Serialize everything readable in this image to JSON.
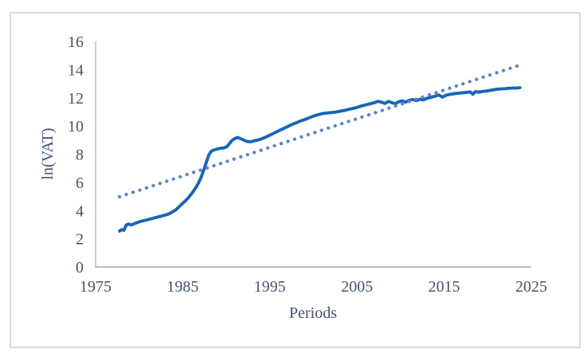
{
  "window": {
    "background_color": "#ffffff",
    "frame_border_color": "#d9d9d9"
  },
  "chart_data": {
    "type": "line",
    "title": "",
    "xlabel": "Periods",
    "ylabel": "ln(VAT)",
    "xlim": [
      1975,
      2025
    ],
    "ylim": [
      0,
      16
    ],
    "x_ticks": [
      1975,
      1985,
      1995,
      2005,
      2015,
      2025
    ],
    "y_ticks": [
      0,
      2,
      4,
      6,
      8,
      10,
      12,
      14,
      16
    ],
    "grid": false,
    "legend": false,
    "axis_color": "#bfbfbf",
    "text_color": "#44546a",
    "series": [
      {
        "name": "ln-vat-series",
        "label": "ln(VAT)",
        "style": "solid",
        "color": "#1766b8",
        "x": [
          1977.75,
          1978.0,
          1978.25,
          1978.5,
          1978.75,
          1979.1,
          1979.5,
          1980.0,
          1980.5,
          1981.0,
          1981.5,
          1982.0,
          1982.5,
          1983.0,
          1983.4,
          1983.8,
          1984.2,
          1984.6,
          1985.0,
          1985.3,
          1985.6,
          1985.9,
          1986.2,
          1986.5,
          1986.8,
          1987.1,
          1987.4,
          1987.7,
          1988.0,
          1988.3,
          1988.6,
          1989.0,
          1989.4,
          1989.8,
          1990.1,
          1990.4,
          1990.7,
          1991.0,
          1991.3,
          1991.6,
          1992.0,
          1992.4,
          1992.8,
          1993.2,
          1993.6,
          1994.0,
          1994.5,
          1995.0,
          1995.5,
          1996.0,
          1996.5,
          1997.0,
          1997.5,
          1998.0,
          1998.5,
          1999.0,
          1999.5,
          2000.0,
          2000.5,
          2001.0,
          2001.5,
          2002.0,
          2002.5,
          2003.0,
          2003.5,
          2004.0,
          2004.5,
          2005.0,
          2005.5,
          2006.0,
          2006.5,
          2007.0,
          2007.4,
          2007.8,
          2008.2,
          2008.6,
          2009.0,
          2009.4,
          2009.8,
          2010.2,
          2010.6,
          2011.0,
          2011.4,
          2011.8,
          2012.2,
          2012.6,
          2013.0,
          2013.5,
          2014.0,
          2014.4,
          2014.8,
          2015.2,
          2015.6,
          2016.0,
          2016.5,
          2017.0,
          2017.5,
          2018.0,
          2018.3,
          2018.6,
          2019.0,
          2019.4,
          2019.8,
          2020.2,
          2020.6,
          2021.0,
          2021.5,
          2022.0,
          2022.5,
          2023.0,
          2023.4,
          2023.7
        ],
        "y": [
          2.55,
          2.65,
          2.6,
          2.95,
          3.05,
          2.98,
          3.08,
          3.2,
          3.28,
          3.36,
          3.44,
          3.52,
          3.6,
          3.68,
          3.76,
          3.9,
          4.05,
          4.28,
          4.52,
          4.68,
          4.88,
          5.1,
          5.35,
          5.62,
          5.95,
          6.35,
          6.85,
          7.4,
          7.95,
          8.22,
          8.3,
          8.38,
          8.42,
          8.46,
          8.55,
          8.78,
          9.0,
          9.12,
          9.18,
          9.12,
          9.0,
          8.9,
          8.88,
          8.95,
          9.0,
          9.08,
          9.2,
          9.35,
          9.5,
          9.65,
          9.8,
          9.95,
          10.1,
          10.22,
          10.35,
          10.46,
          10.58,
          10.7,
          10.8,
          10.88,
          10.92,
          10.95,
          10.98,
          11.04,
          11.1,
          11.17,
          11.24,
          11.32,
          11.42,
          11.5,
          11.58,
          11.66,
          11.75,
          11.7,
          11.6,
          11.74,
          11.66,
          11.58,
          11.72,
          11.78,
          11.7,
          11.82,
          11.88,
          11.8,
          11.9,
          11.85,
          11.96,
          12.04,
          12.12,
          12.2,
          12.05,
          12.18,
          12.24,
          12.28,
          12.32,
          12.35,
          12.38,
          12.42,
          12.26,
          12.44,
          12.4,
          12.45,
          12.48,
          12.52,
          12.56,
          12.6,
          12.63,
          12.65,
          12.68,
          12.7,
          12.7,
          12.72
        ]
      },
      {
        "name": "linear-trendline",
        "label": "Linear trend",
        "style": "dotted",
        "color": "#5d83cf",
        "x": [
          1977.75,
          2023.7
        ],
        "y": [
          4.98,
          14.32
        ]
      }
    ]
  }
}
